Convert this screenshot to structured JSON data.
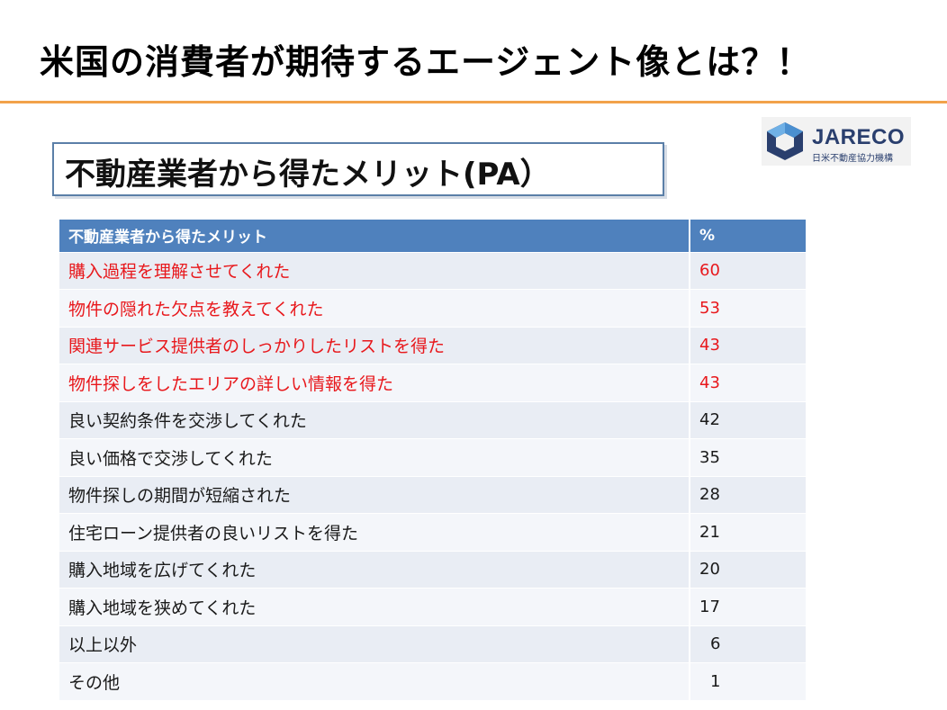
{
  "slide": {
    "title": "米国の消費者が期待するエージェント像とは？！",
    "subtitle": "不動産業者から得たメリット(PA）",
    "accent_color": "#f2a24a"
  },
  "logo": {
    "name": "JARECO",
    "subtitle": "日米不動産協力機構"
  },
  "table": {
    "header": {
      "col1": "不動産業者から得たメリット",
      "col2": "%"
    },
    "highlight_color": "#e8181c",
    "header_color": "#4f81bd",
    "rows": [
      {
        "label": "購入過程を理解させてくれた",
        "value": "60",
        "highlight": true
      },
      {
        "label": "物件の隠れた欠点を教えてくれた",
        "value": "53",
        "highlight": true
      },
      {
        "label": "関連サービス提供者のしっかりしたリストを得た",
        "value": "43",
        "highlight": true
      },
      {
        "label": "物件探しをしたエリアの詳しい情報を得た",
        "value": "43",
        "highlight": true
      },
      {
        "label": "良い契約条件を交渉してくれた",
        "value": "42",
        "highlight": false
      },
      {
        "label": "良い価格で交渉してくれた",
        "value": "35",
        "highlight": false
      },
      {
        "label": "物件探しの期間が短縮された",
        "value": "28",
        "highlight": false
      },
      {
        "label": "住宅ローン提供者の良いリストを得た",
        "value": "21",
        "highlight": false
      },
      {
        "label": "購入地域を広げてくれた",
        "value": "20",
        "highlight": false
      },
      {
        "label": "購入地域を狭めてくれた",
        "value": "17",
        "highlight": false
      },
      {
        "label": "以上以外",
        "value": "6",
        "highlight": false
      },
      {
        "label": "その他",
        "value": "1",
        "highlight": false
      }
    ]
  }
}
